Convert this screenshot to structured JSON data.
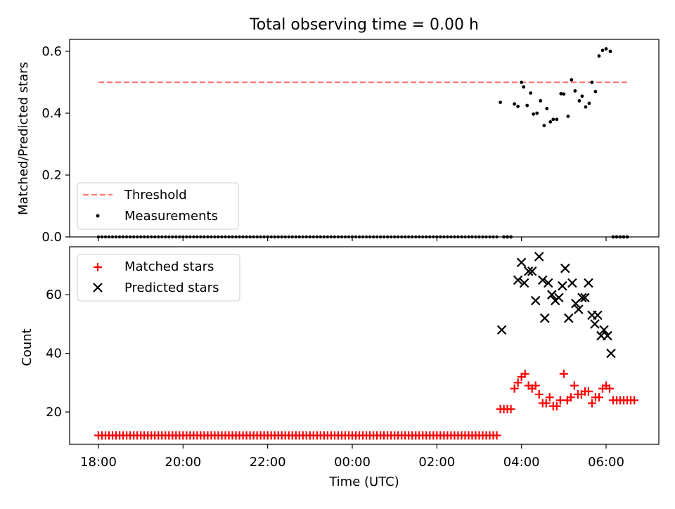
{
  "figure_title": "Total observing time = 0.00 h",
  "chart_data": [
    {
      "type": "scatter",
      "ylabel": "Matched/Predicted stars",
      "ylim": [
        0,
        0.64
      ],
      "yticks": [
        "0.0",
        "0.2",
        "0.4",
        "0.6"
      ],
      "ytick_values": [
        0,
        0.2,
        0.4,
        0.6
      ],
      "legend": {
        "position": "lower-left",
        "entries": [
          "Threshold",
          "Measurements"
        ]
      },
      "threshold": {
        "name": "Threshold",
        "value": 0.5,
        "x_start": "18:00",
        "x_end": "06:30",
        "color": "#ff7777",
        "style": "dashed"
      },
      "measurements": {
        "name": "Measurements",
        "color": "#000000",
        "zero_run": {
          "start": "18:00",
          "end": "03:25",
          "step_minutes": 5,
          "value": 0
        },
        "points": [
          [
            "03:35",
            0.0
          ],
          [
            "03:40",
            0.0
          ],
          [
            "03:45",
            0.0
          ],
          [
            "03:30",
            0.435
          ],
          [
            "03:50",
            0.43
          ],
          [
            "03:55",
            0.422
          ],
          [
            "04:00",
            0.5
          ],
          [
            "04:03",
            0.485
          ],
          [
            "04:08",
            0.425
          ],
          [
            "04:13",
            0.465
          ],
          [
            "04:17",
            0.397
          ],
          [
            "04:22",
            0.4
          ],
          [
            "04:27",
            0.44
          ],
          [
            "04:32",
            0.36
          ],
          [
            "04:36",
            0.415
          ],
          [
            "04:41",
            0.372
          ],
          [
            "04:45",
            0.38
          ],
          [
            "04:50",
            0.38
          ],
          [
            "04:56",
            0.463
          ],
          [
            "05:00",
            0.462
          ],
          [
            "05:06",
            0.39
          ],
          [
            "05:11",
            0.508
          ],
          [
            "05:16",
            0.472
          ],
          [
            "05:22",
            0.44
          ],
          [
            "05:26",
            0.455
          ],
          [
            "05:31",
            0.42
          ],
          [
            "05:36",
            0.432
          ],
          [
            "05:40",
            0.5
          ],
          [
            "05:45",
            0.47
          ],
          [
            "05:50",
            0.585
          ],
          [
            "05:55",
            0.603
          ],
          [
            "06:00",
            0.608
          ],
          [
            "06:06",
            0.6
          ],
          [
            "06:10",
            0.0
          ],
          [
            "06:15",
            0.0
          ],
          [
            "06:20",
            0.0
          ],
          [
            "06:25",
            0.0
          ],
          [
            "06:30",
            0.0
          ]
        ]
      }
    },
    {
      "type": "scatter",
      "xlabel": "Time (UTC)",
      "ylabel": "Count",
      "ylim": [
        9,
        75
      ],
      "yticks": [
        "20",
        "40",
        "60"
      ],
      "ytick_values": [
        20,
        40,
        60
      ],
      "xticks": [
        "18:00",
        "20:00",
        "22:00",
        "00:00",
        "02:00",
        "04:00",
        "06:00"
      ],
      "legend": {
        "position": "upper-left",
        "entries": [
          "Matched stars",
          "Predicted stars"
        ]
      },
      "matched": {
        "name": "Matched stars",
        "color": "#ff0000",
        "marker": "plus",
        "flat_run": {
          "start": "18:00",
          "end": "03:25",
          "step_minutes": 5,
          "value": 12
        },
        "points": [
          [
            "03:30",
            21
          ],
          [
            "03:35",
            21
          ],
          [
            "03:40",
            21
          ],
          [
            "03:45",
            21
          ],
          [
            "03:50",
            28
          ],
          [
            "03:55",
            30
          ],
          [
            "04:00",
            32
          ],
          [
            "04:05",
            33
          ],
          [
            "04:10",
            29
          ],
          [
            "04:15",
            28
          ],
          [
            "04:20",
            29
          ],
          [
            "04:25",
            26
          ],
          [
            "04:30",
            23
          ],
          [
            "04:35",
            23
          ],
          [
            "04:40",
            25
          ],
          [
            "04:45",
            22
          ],
          [
            "04:50",
            22
          ],
          [
            "04:55",
            24
          ],
          [
            "05:00",
            33
          ],
          [
            "05:05",
            24
          ],
          [
            "05:10",
            25
          ],
          [
            "05:15",
            29
          ],
          [
            "05:20",
            26
          ],
          [
            "05:25",
            26
          ],
          [
            "05:30",
            27
          ],
          [
            "05:35",
            27
          ],
          [
            "05:40",
            23
          ],
          [
            "05:45",
            25
          ],
          [
            "05:50",
            25
          ],
          [
            "05:55",
            28
          ],
          [
            "06:00",
            29
          ],
          [
            "06:05",
            28
          ],
          [
            "06:10",
            24
          ],
          [
            "06:15",
            24
          ],
          [
            "06:20",
            24
          ],
          [
            "06:25",
            24
          ],
          [
            "06:30",
            24
          ],
          [
            "06:35",
            24
          ],
          [
            "06:40",
            24
          ]
        ]
      },
      "predicted": {
        "name": "Predicted stars",
        "color": "#000000",
        "marker": "x",
        "points": [
          [
            "03:32",
            48
          ],
          [
            "03:55",
            65
          ],
          [
            "04:00",
            71
          ],
          [
            "04:04",
            64
          ],
          [
            "04:10",
            68
          ],
          [
            "04:15",
            68
          ],
          [
            "04:20",
            58
          ],
          [
            "04:25",
            73
          ],
          [
            "04:30",
            65
          ],
          [
            "04:33",
            52
          ],
          [
            "04:38",
            64
          ],
          [
            "04:43",
            60
          ],
          [
            "04:48",
            58
          ],
          [
            "04:53",
            59
          ],
          [
            "04:58",
            63
          ],
          [
            "05:02",
            69
          ],
          [
            "05:07",
            52
          ],
          [
            "05:12",
            64
          ],
          [
            "05:17",
            57
          ],
          [
            "05:21",
            55
          ],
          [
            "05:26",
            59
          ],
          [
            "05:30",
            59
          ],
          [
            "05:35",
            64
          ],
          [
            "05:40",
            53
          ],
          [
            "05:44",
            50
          ],
          [
            "05:48",
            53
          ],
          [
            "05:53",
            46
          ],
          [
            "05:57",
            48
          ],
          [
            "06:02",
            46
          ],
          [
            "06:07",
            40
          ]
        ]
      }
    }
  ]
}
